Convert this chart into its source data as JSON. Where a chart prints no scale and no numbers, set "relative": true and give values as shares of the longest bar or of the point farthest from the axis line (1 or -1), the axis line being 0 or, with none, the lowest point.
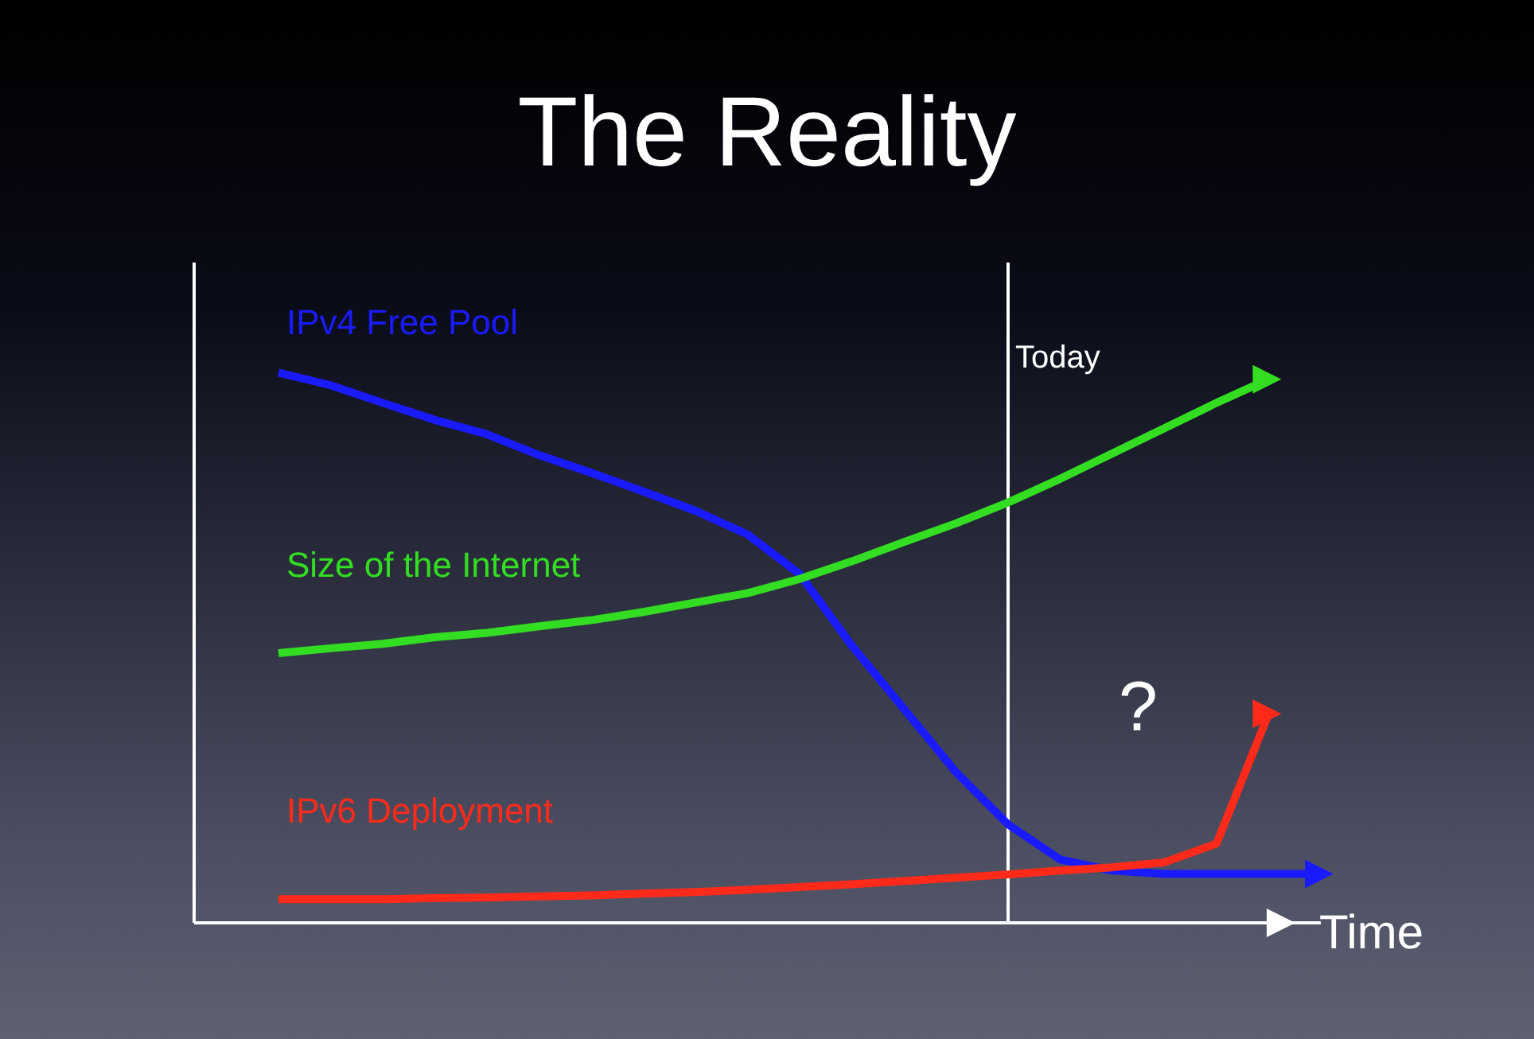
{
  "chart_data": {
    "type": "line",
    "title": "The Reality",
    "xlabel": "Time",
    "relative": true,
    "categories": [
      null,
      null,
      null,
      null,
      null,
      null,
      null,
      null,
      null,
      null,
      null,
      null,
      null,
      null,
      null,
      null,
      null,
      null,
      null,
      null,
      null
    ],
    "tick_labels": false,
    "series": [
      {
        "name": "IPv4 Free Pool",
        "color": "#1a1aff",
        "values": [
          1,
          0.977,
          0.945,
          0.914,
          0.888,
          0.85,
          0.818,
          0.784,
          0.749,
          0.706,
          0.634,
          0.504,
          0.389,
          0.274,
          0.179,
          0.115,
          0.095,
          0.089,
          0.089,
          0.089,
          0.089
        ]
      },
      {
        "name": "Size of the Internet",
        "color": "#33dd22",
        "values": [
          0.49,
          0.499,
          0.507,
          0.519,
          0.527,
          0.539,
          0.55,
          0.565,
          0.582,
          0.599,
          0.625,
          0.657,
          0.692,
          0.726,
          0.764,
          0.807,
          0.853,
          0.899,
          0.945,
          0.988,
          null
        ]
      },
      {
        "name": "IPv6 Deployment",
        "color": "#ff2a1a",
        "values": [
          0.043,
          0.043,
          0.043,
          0.045,
          0.046,
          0.048,
          0.05,
          0.053,
          0.056,
          0.06,
          0.065,
          0.07,
          0.076,
          0.082,
          0.088,
          0.095,
          0.101,
          0.11,
          0.144,
          0.38,
          null
        ]
      }
    ],
    "annotations": [
      "Today",
      "?"
    ]
  }
}
